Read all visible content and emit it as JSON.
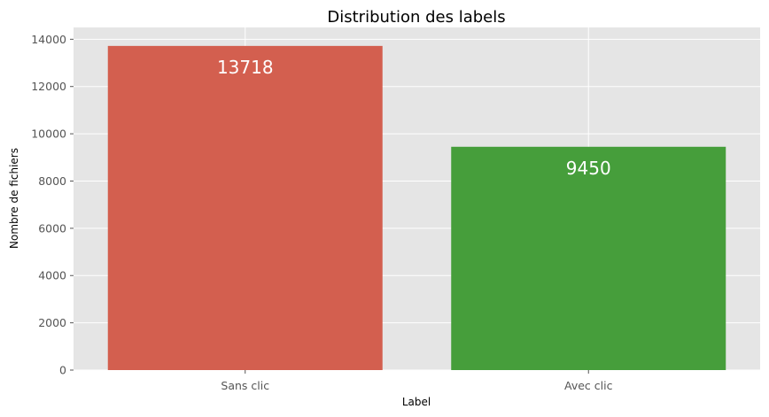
{
  "chart_data": {
    "type": "bar",
    "title": "Distribution des labels",
    "xlabel": "Label",
    "ylabel": "Nombre de fichiers",
    "categories": [
      "Sans clic",
      "Avec clic"
    ],
    "values": [
      13718,
      9450
    ],
    "data_labels": [
      "13718",
      "9450"
    ],
    "bar_colors": [
      "#d35f4f",
      "#469e3b"
    ],
    "ylim": [
      0,
      14500
    ],
    "yticks": [
      0,
      2000,
      4000,
      6000,
      8000,
      10000,
      12000,
      14000
    ],
    "ytick_labels": [
      "0",
      "2000",
      "4000",
      "6000",
      "8000",
      "10000",
      "12000",
      "14000"
    ],
    "background_color": "#e5e5e5",
    "grid": true,
    "grid_color": "#ffffff",
    "legend": "none"
  }
}
